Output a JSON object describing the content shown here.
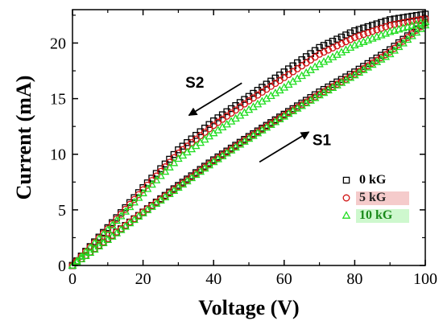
{
  "chart_data": {
    "type": "scatter",
    "title": "",
    "xlabel": "Voltage (V)",
    "ylabel": "Current (mA)",
    "xlim": [
      0,
      100
    ],
    "ylim": [
      0,
      23
    ],
    "xticks": [
      0,
      20,
      40,
      60,
      80,
      100
    ],
    "yticks": [
      0,
      5,
      10,
      15,
      20
    ],
    "grid": false,
    "legend_position": "lower-right",
    "annotations": [
      {
        "text": "S1",
        "x": 68,
        "y": 10.8,
        "arrow_from": [
          53,
          9.3
        ],
        "arrow_to": [
          67,
          12.0
        ]
      },
      {
        "text": "S2",
        "x": 32,
        "y": 16.0,
        "arrow_from": [
          48,
          16.4
        ],
        "arrow_to": [
          33,
          13.5
        ]
      }
    ],
    "series": [
      {
        "name": "0 kG",
        "color": "#000000",
        "marker": "square",
        "sweep_up": {
          "x": [
            0,
            10,
            20,
            30,
            40,
            50,
            60,
            70,
            80,
            90,
            100
          ],
          "y": [
            0,
            2.4,
            4.8,
            7.2,
            9.5,
            11.6,
            13.6,
            15.6,
            17.4,
            19.4,
            21.9
          ]
        },
        "sweep_down": {
          "x": [
            100,
            90,
            80,
            70,
            60,
            50,
            40,
            30,
            20,
            10,
            0
          ],
          "y": [
            22.6,
            22.1,
            21.1,
            19.6,
            17.4,
            15.2,
            13.0,
            10.4,
            7.0,
            3.4,
            0
          ]
        }
      },
      {
        "name": "5 kG",
        "color": "#d01010",
        "marker": "circle",
        "sweep_up": {
          "x": [
            0,
            10,
            20,
            30,
            40,
            50,
            60,
            70,
            80,
            90,
            100
          ],
          "y": [
            0,
            2.4,
            4.8,
            7.1,
            9.4,
            11.5,
            13.5,
            15.4,
            17.2,
            19.2,
            21.8
          ]
        },
        "sweep_down": {
          "x": [
            100,
            90,
            80,
            70,
            60,
            50,
            40,
            30,
            20,
            10,
            0
          ],
          "y": [
            22.2,
            21.6,
            20.5,
            19.0,
            16.9,
            14.8,
            12.6,
            10.1,
            6.8,
            3.3,
            0
          ]
        }
      },
      {
        "name": "10 kG",
        "color": "#22dd22",
        "marker": "triangle",
        "sweep_up": {
          "x": [
            0,
            10,
            20,
            30,
            40,
            50,
            60,
            70,
            80,
            90,
            100
          ],
          "y": [
            0,
            2.3,
            4.7,
            7.0,
            9.3,
            11.4,
            13.4,
            15.3,
            17.1,
            19.0,
            21.6
          ]
        },
        "sweep_down": {
          "x": [
            100,
            90,
            80,
            70,
            60,
            50,
            40,
            30,
            20,
            10,
            0
          ],
          "y": [
            21.9,
            21.0,
            19.8,
            18.1,
            16.0,
            14.0,
            11.9,
            9.6,
            6.5,
            3.2,
            0
          ]
        }
      }
    ]
  }
}
